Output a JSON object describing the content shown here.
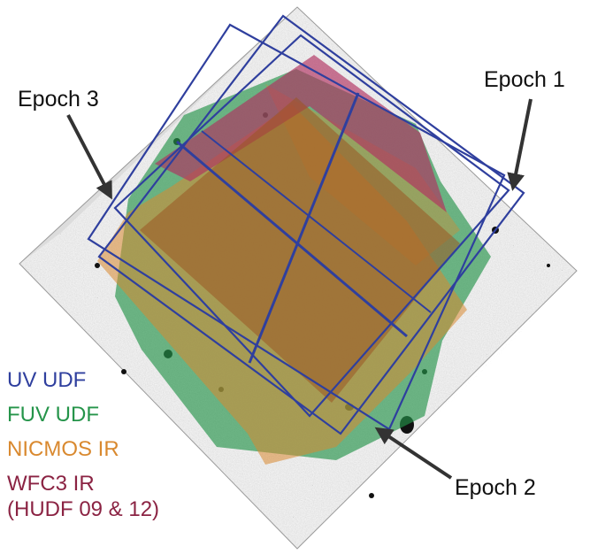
{
  "epoch_labels": {
    "epoch1": "Epoch 1",
    "epoch2": "Epoch 2",
    "epoch3": "Epoch 3"
  },
  "legend": {
    "uv_udf": "UV UDF",
    "fuv_udf": "FUV UDF",
    "nicmos_ir": "NICMOS IR",
    "wfc3_ir": "WFC3 IR",
    "wfc3_ir_sub": "(HUDF 09 & 12)"
  },
  "colors": {
    "uv_udf": "#2f3f9e",
    "fuv_udf": "#25944a",
    "nicmos_ir": "#d9892f",
    "wfc3_ir": "#8b2343",
    "arrow": "#333333",
    "background_field": "#e6e6e6"
  }
}
